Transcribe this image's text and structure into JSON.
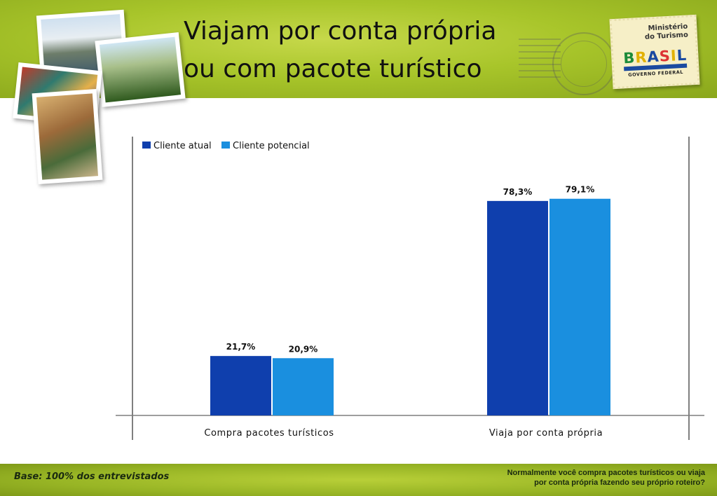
{
  "title": {
    "line1": "Viajam por conta própria",
    "line2": "ou com pacote turístico"
  },
  "logo": {
    "ministry_line1": "Ministério",
    "ministry_line2": "do Turismo",
    "brand": "BRASIL",
    "subline": "GOVERNO FEDERAL"
  },
  "footer": {
    "base_note": "Base: 100% dos entrevistados",
    "question_line1": "Normalmente você compra pacotes turísticos ou viaja",
    "question_line2": "por conta própria fazendo seu próprio roteiro?"
  },
  "colors": {
    "series1": "#0f3fad",
    "series2": "#1a8fdf",
    "axis": "#7f7f7f"
  },
  "chart_data": {
    "type": "bar",
    "categories": [
      "Compra pacotes turísticos",
      "Viaja por conta própria"
    ],
    "series": [
      {
        "name": "Cliente atual",
        "values": [
          21.7,
          78.3
        ],
        "labels": [
          "21,7%",
          "78,3%"
        ]
      },
      {
        "name": "Cliente potencial",
        "values": [
          20.9,
          79.1
        ],
        "labels": [
          "20,9%",
          "79,1%"
        ]
      }
    ],
    "ylim": [
      0,
      100
    ],
    "grid": false,
    "legend": "top-left"
  }
}
